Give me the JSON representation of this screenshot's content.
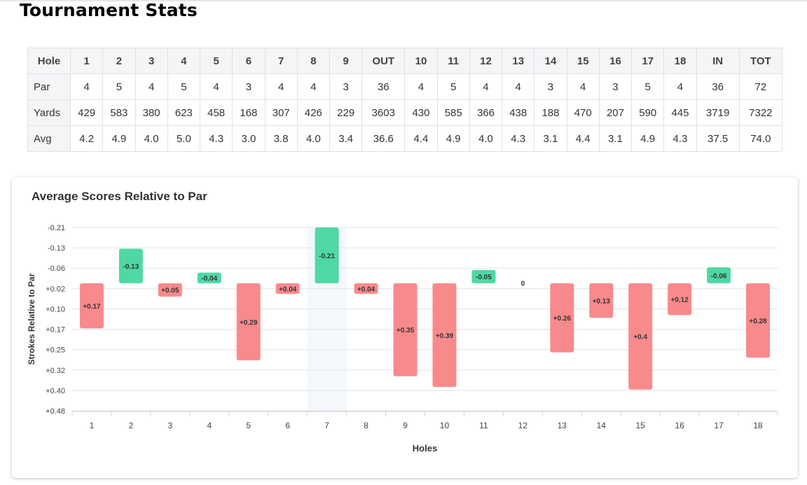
{
  "page": {
    "title": "Tournament Stats"
  },
  "scorecard": {
    "columns": [
      "Hole",
      "1",
      "2",
      "3",
      "4",
      "5",
      "6",
      "7",
      "8",
      "9",
      "OUT",
      "10",
      "11",
      "12",
      "13",
      "14",
      "15",
      "16",
      "17",
      "18",
      "IN",
      "TOT"
    ],
    "rows": [
      {
        "label": "Par",
        "cells": [
          "4",
          "5",
          "4",
          "5",
          "4",
          "3",
          "4",
          "4",
          "3",
          "36",
          "4",
          "5",
          "4",
          "4",
          "3",
          "4",
          "3",
          "5",
          "4",
          "36",
          "72"
        ]
      },
      {
        "label": "Yards",
        "cells": [
          "429",
          "583",
          "380",
          "623",
          "458",
          "168",
          "307",
          "426",
          "229",
          "3603",
          "430",
          "585",
          "366",
          "438",
          "188",
          "470",
          "207",
          "590",
          "445",
          "3719",
          "7322"
        ]
      },
      {
        "label": "Avg",
        "cells": [
          "4.2",
          "4.9",
          "4.0",
          "5.0",
          "4.3",
          "3.0",
          "3.8",
          "4.0",
          "3.4",
          "36.6",
          "4.4",
          "4.9",
          "4.0",
          "4.3",
          "3.1",
          "4.4",
          "3.1",
          "4.9",
          "4.3",
          "37.5",
          "74.0"
        ]
      }
    ]
  },
  "chart_data": {
    "type": "bar",
    "title": "Average Scores Relative to Par",
    "xlabel": "Holes",
    "ylabel": "Strokes Relative to Par",
    "categories": [
      "1",
      "2",
      "3",
      "4",
      "5",
      "6",
      "7",
      "8",
      "9",
      "10",
      "11",
      "12",
      "13",
      "14",
      "15",
      "16",
      "17",
      "18"
    ],
    "values": [
      0.17,
      -0.13,
      0.05,
      -0.04,
      0.29,
      0.04,
      -0.21,
      0.04,
      0.35,
      0.39,
      -0.05,
      0,
      0.26,
      0.13,
      0.4,
      0.12,
      -0.06,
      0.28
    ],
    "data_labels": [
      "+0.17",
      "-0.13",
      "+0.05",
      "-0.04",
      "+0.29",
      "+0.04",
      "-0.21",
      "+0.04",
      "+0.35",
      "+0.39",
      "-0.05",
      "0",
      "+0.26",
      "+0.13",
      "+0.4",
      "+0.12",
      "-0.06",
      "+0.28"
    ],
    "y_ticks": [
      "-0.21",
      "-0.13",
      "-0.06",
      "+0.02",
      "+0.10",
      "+0.17",
      "+0.25",
      "+0.32",
      "+0.40",
      "+0.48"
    ],
    "ylim": [
      -0.21,
      0.48
    ],
    "y_inverted": true,
    "highlighted_category": "7",
    "colors": {
      "positive": "#f98a8c",
      "negative": "#4fd8a4",
      "grid": "#e3e3e3",
      "highlight": "#f4f7fc"
    }
  }
}
